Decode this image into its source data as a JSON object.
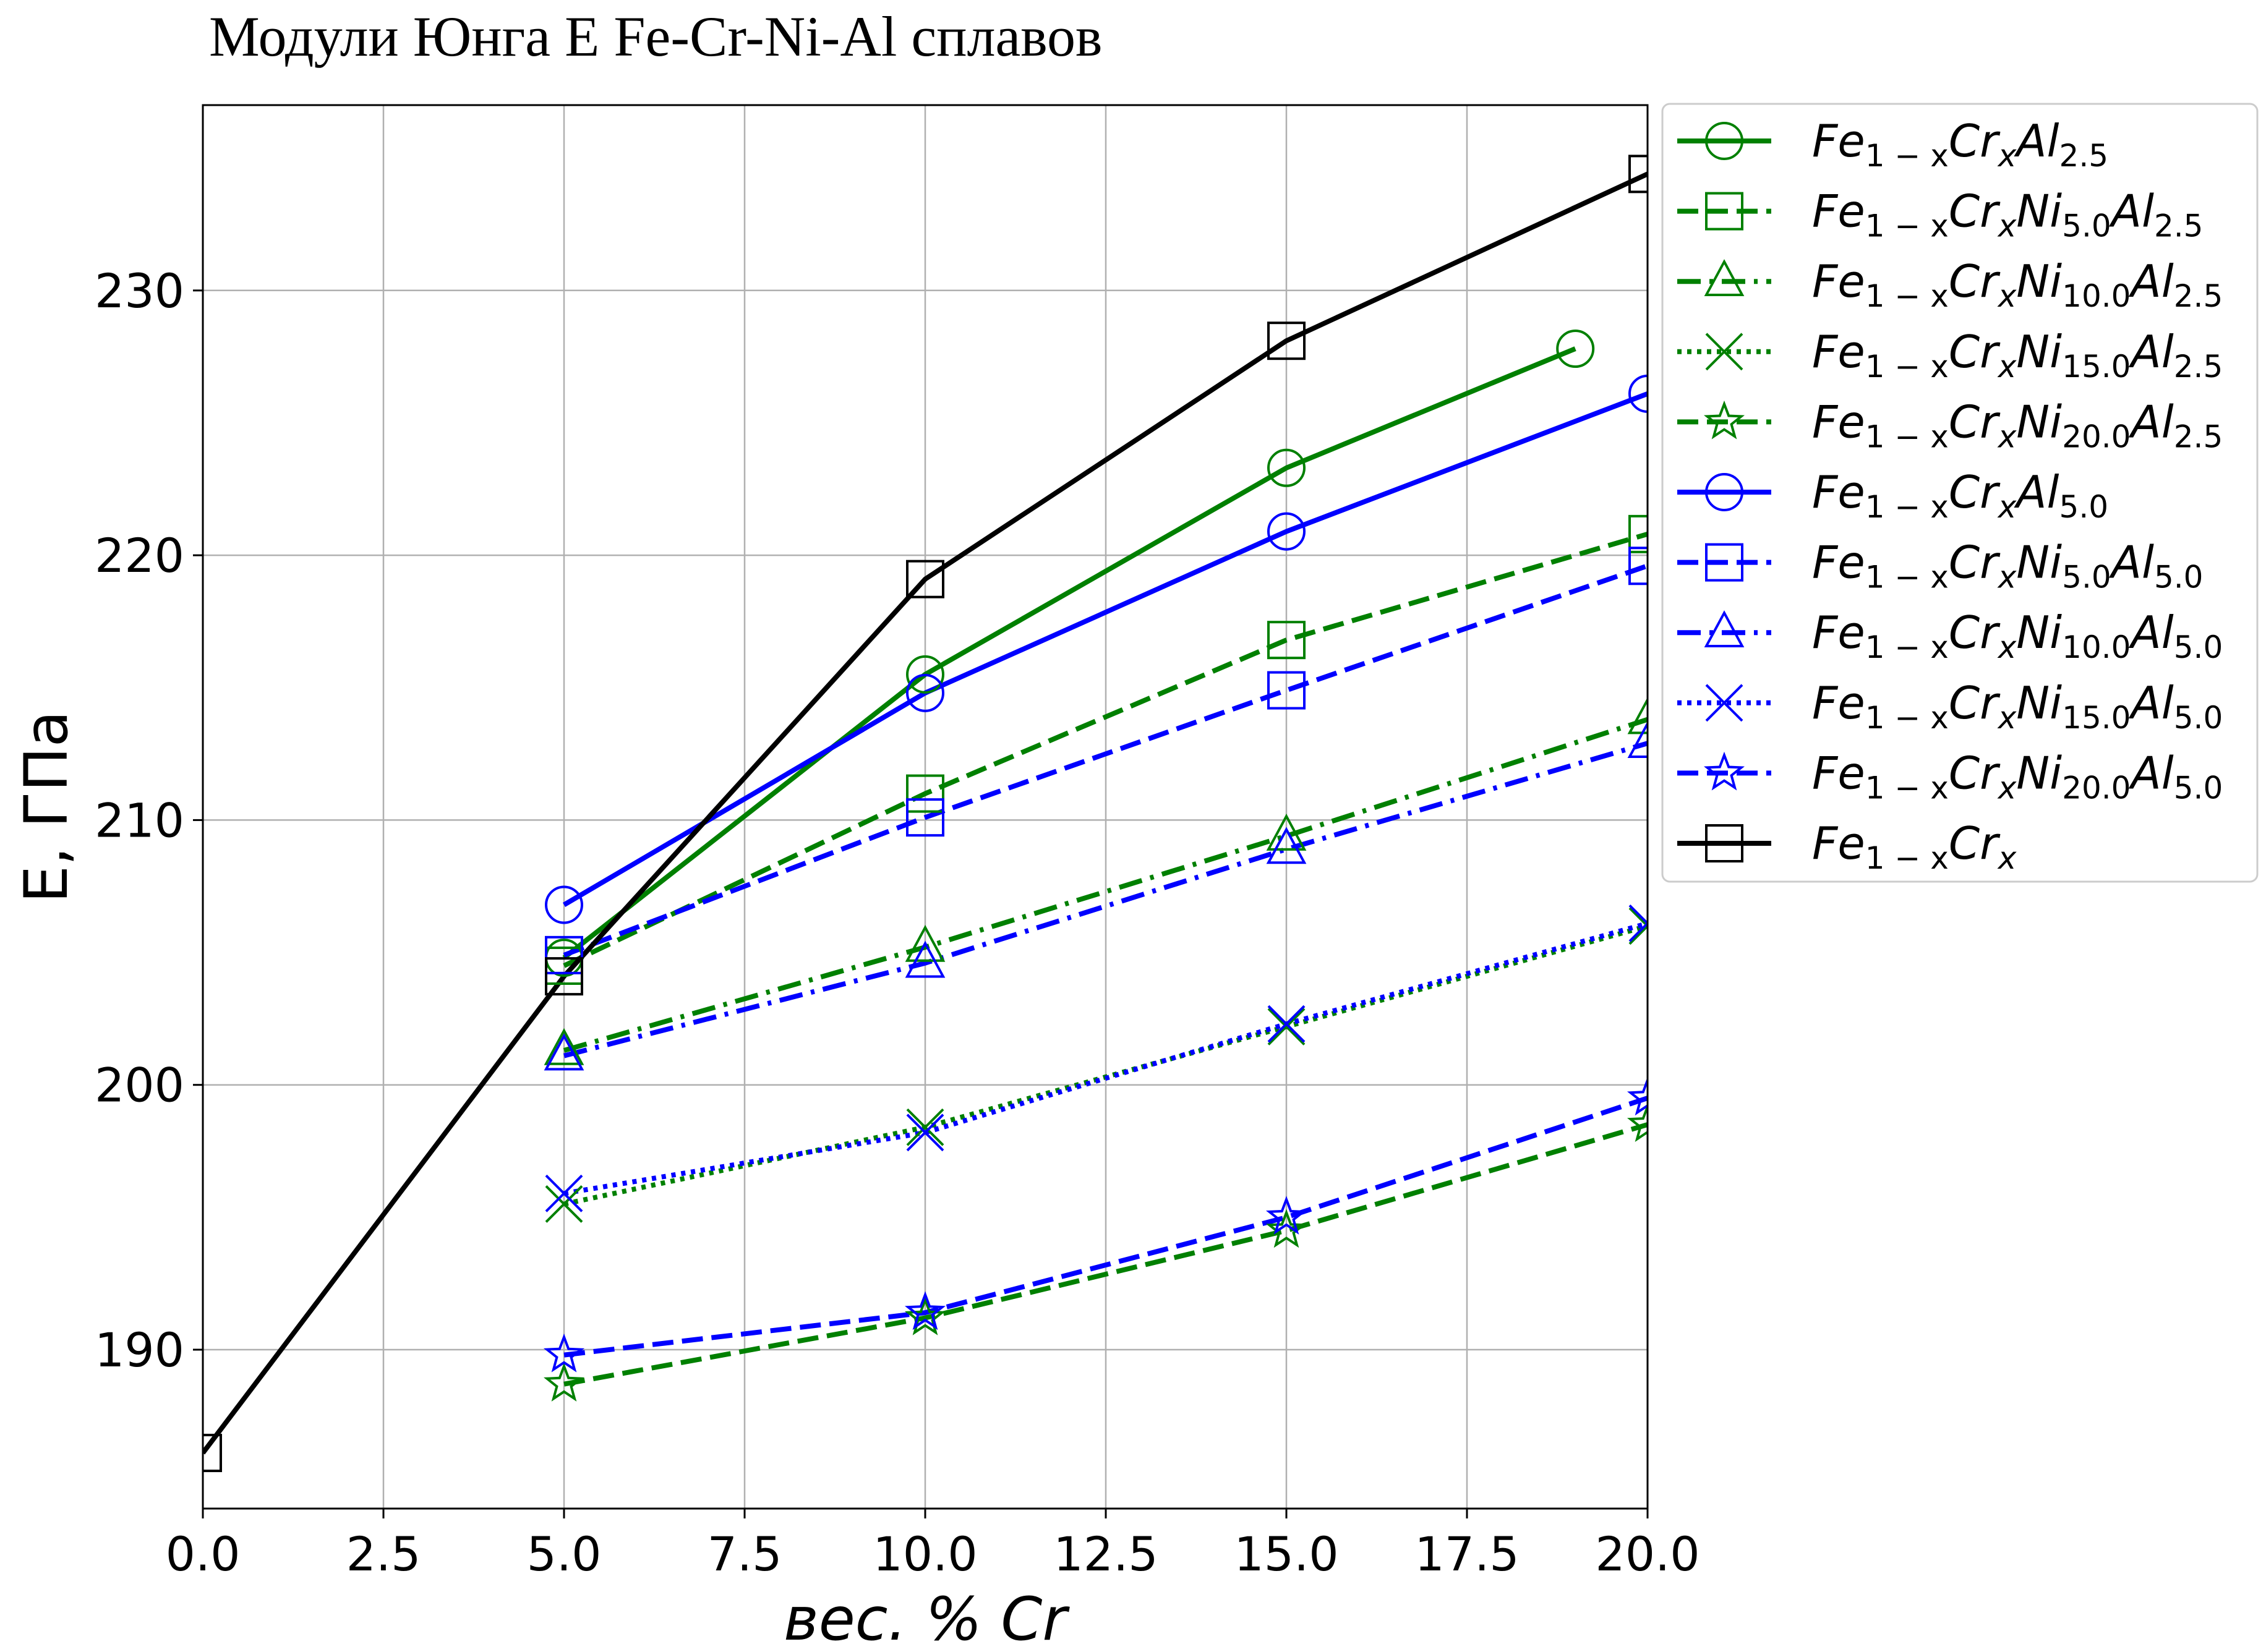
{
  "chart_data": {
    "type": "line",
    "title": "Модули Юнга E Fe-Cr-Ni-Al сплавов",
    "xlabel": "вес. % Cr",
    "ylabel": "E, ГПа",
    "xlim": [
      0,
      20
    ],
    "ylim": [
      184,
      237
    ],
    "xticks": [
      "0.0",
      "2.5",
      "5.0",
      "7.5",
      "10.0",
      "12.5",
      "15.0",
      "17.5",
      "20.0"
    ],
    "yticks": [
      "190",
      "200",
      "210",
      "220",
      "230"
    ],
    "grid": true,
    "legend_position": "outside-right",
    "series": [
      {
        "name": "Fe1−xCrxAl2.5",
        "legend": {
          "base": "Fe",
          "parts": [
            [
              "1 − x",
              "Cr"
            ],
            [
              "x",
              "Al"
            ],
            [
              "2.5",
              ""
            ]
          ]
        },
        "color": "#008000",
        "dash": "solid",
        "marker": "circle",
        "x": [
          5,
          10,
          15,
          19
        ],
        "y": [
          204.8,
          215.5,
          223.3,
          227.8
        ]
      },
      {
        "name": "Fe1−xCrxNi5.0Al2.5",
        "legend": {
          "base": "Fe",
          "parts": [
            [
              "1 − x",
              "Cr"
            ],
            [
              "x",
              "Ni"
            ],
            [
              "5.0",
              "Al"
            ],
            [
              "2.5",
              ""
            ]
          ]
        },
        "color": "#008000",
        "dash": "dashed",
        "marker": "square",
        "x": [
          5,
          10,
          15,
          20
        ],
        "y": [
          204.5,
          211.0,
          216.8,
          220.8
        ]
      },
      {
        "name": "Fe1−xCrxNi10.0Al2.5",
        "legend": {
          "base": "Fe",
          "parts": [
            [
              "1 − x",
              "Cr"
            ],
            [
              "x",
              "Ni"
            ],
            [
              "10.0",
              "Al"
            ],
            [
              "2.5",
              ""
            ]
          ]
        },
        "color": "#008000",
        "dash": "dashdot",
        "marker": "triangle",
        "x": [
          5,
          10,
          15,
          20
        ],
        "y": [
          201.3,
          205.2,
          209.4,
          213.8
        ]
      },
      {
        "name": "Fe1−xCrxNi15.0Al2.5",
        "legend": {
          "base": "Fe",
          "parts": [
            [
              "1 − x",
              "Cr"
            ],
            [
              "x",
              "Ni"
            ],
            [
              "15.0",
              "Al"
            ],
            [
              "2.5",
              ""
            ]
          ]
        },
        "color": "#008000",
        "dash": "dotted",
        "marker": "x",
        "x": [
          5,
          10,
          15,
          20
        ],
        "y": [
          195.5,
          198.4,
          202.2,
          206.0
        ]
      },
      {
        "name": "Fe1−xCrxNi20.0Al2.5",
        "legend": {
          "base": "Fe",
          "parts": [
            [
              "1 − x",
              "Cr"
            ],
            [
              "x",
              "Ni"
            ],
            [
              "20.0",
              "Al"
            ],
            [
              "2.5",
              ""
            ]
          ]
        },
        "color": "#008000",
        "dash": "dashed",
        "marker": "star",
        "x": [
          5,
          10,
          15,
          20
        ],
        "y": [
          188.7,
          191.2,
          194.5,
          198.5
        ]
      },
      {
        "name": "Fe1−xCrxAl5.0",
        "legend": {
          "base": "Fe",
          "parts": [
            [
              "1 − x",
              "Cr"
            ],
            [
              "x",
              "Al"
            ],
            [
              "5.0",
              ""
            ]
          ]
        },
        "color": "#0000ff",
        "dash": "solid",
        "marker": "circle",
        "x": [
          5,
          10,
          15,
          20
        ],
        "y": [
          206.8,
          214.8,
          220.9,
          226.1
        ]
      },
      {
        "name": "Fe1−xCrxNi5.0Al5.0",
        "legend": {
          "base": "Fe",
          "parts": [
            [
              "1 − x",
              "Cr"
            ],
            [
              "x",
              "Ni"
            ],
            [
              "5.0",
              "Al"
            ],
            [
              "5.0",
              ""
            ]
          ]
        },
        "color": "#0000ff",
        "dash": "dashed",
        "marker": "square",
        "x": [
          5,
          10,
          15,
          20
        ],
        "y": [
          204.9,
          210.1,
          214.9,
          219.6
        ]
      },
      {
        "name": "Fe1−xCrxNi10.0Al5.0",
        "legend": {
          "base": "Fe",
          "parts": [
            [
              "1 − x",
              "Cr"
            ],
            [
              "x",
              "Ni"
            ],
            [
              "10.0",
              "Al"
            ],
            [
              "5.0",
              ""
            ]
          ]
        },
        "color": "#0000ff",
        "dash": "dashdot",
        "marker": "triangle",
        "x": [
          5,
          10,
          15,
          20
        ],
        "y": [
          201.1,
          204.6,
          208.9,
          212.9
        ]
      },
      {
        "name": "Fe1−xCrxNi15.0Al5.0",
        "legend": {
          "base": "Fe",
          "parts": [
            [
              "1 − x",
              "Cr"
            ],
            [
              "x",
              "Ni"
            ],
            [
              "15.0",
              "Al"
            ],
            [
              "5.0",
              ""
            ]
          ]
        },
        "color": "#0000ff",
        "dash": "dotted",
        "marker": "x",
        "x": [
          5,
          10,
          15,
          20
        ],
        "y": [
          195.9,
          198.2,
          202.3,
          206.1
        ]
      },
      {
        "name": "Fe1−xCrxNi20.0Al5.0",
        "legend": {
          "base": "Fe",
          "parts": [
            [
              "1 − x",
              "Cr"
            ],
            [
              "x",
              "Ni"
            ],
            [
              "20.0",
              "Al"
            ],
            [
              "5.0",
              ""
            ]
          ]
        },
        "color": "#0000ff",
        "dash": "dashed",
        "marker": "star",
        "x": [
          5,
          10,
          15,
          20
        ],
        "y": [
          189.8,
          191.4,
          195.0,
          199.5
        ]
      },
      {
        "name": "Fe1−xCrx",
        "legend": {
          "base": "Fe",
          "parts": [
            [
              "1 − x",
              "Cr"
            ],
            [
              "x",
              ""
            ]
          ]
        },
        "color": "#000000",
        "dash": "solid",
        "marker": "square",
        "x": [
          0,
          5,
          10,
          15,
          20
        ],
        "y": [
          186.1,
          204.1,
          219.1,
          228.1,
          234.4
        ]
      }
    ]
  }
}
